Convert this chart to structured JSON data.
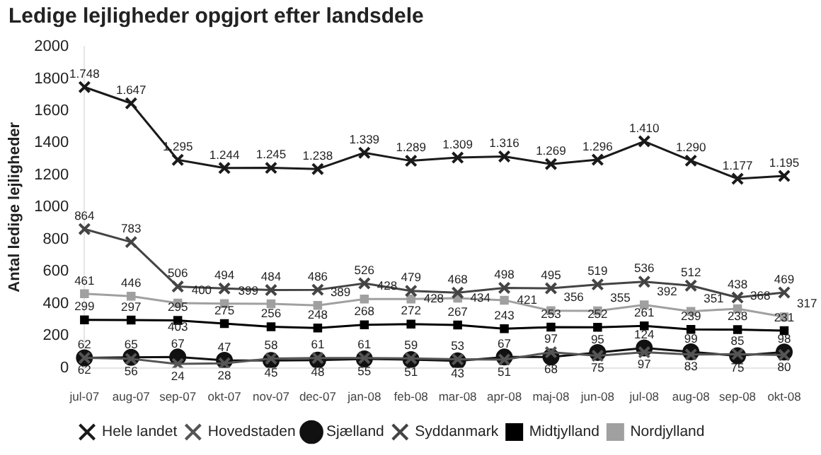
{
  "chart_data": {
    "type": "line",
    "title": "Ledige lejligheder opgjort efter landsdele",
    "ylabel": "Antal ledige lejligheder",
    "categories": [
      "jul-07",
      "aug-07",
      "sep-07",
      "okt-07",
      "nov-07",
      "dec-07",
      "jan-08",
      "feb-08",
      "mar-08",
      "apr-08",
      "maj-08",
      "jun-08",
      "jul-08",
      "aug-08",
      "sep-08",
      "okt-08"
    ],
    "ylim": [
      0,
      2000
    ],
    "yticks": [
      0,
      200,
      400,
      600,
      800,
      1000,
      1200,
      1400,
      1600,
      1800,
      2000
    ],
    "grid": false,
    "legend": "bottom",
    "series": [
      {
        "name": "Hele landet",
        "color": "#1a1a1a",
        "marker": "cross",
        "values": [
          1748,
          1647,
          1295,
          1244,
          1245,
          1238,
          1339,
          1289,
          1309,
          1316,
          1269,
          1296,
          1410,
          1290,
          1177,
          1195
        ],
        "value_labels": [
          "1.748",
          "1.647",
          "1.295",
          "1.244",
          "1.245",
          "1.238",
          "1.339",
          "1.289",
          "1.309",
          "1.316",
          "1.269",
          "1.296",
          "1.410",
          "1.290",
          "1.177",
          "1.195"
        ]
      },
      {
        "name": "Hovedstaden",
        "color": "#555555",
        "marker": "cross",
        "values": [
          62,
          56,
          24,
          28,
          58,
          61,
          61,
          59,
          53,
          51,
          97,
          75,
          97,
          83,
          85,
          80
        ],
        "value_labels": [
          "62",
          "56",
          "24",
          "28",
          "58",
          "61",
          "61",
          "59",
          "53",
          "51",
          "97",
          "75",
          "97",
          "83",
          "85",
          "80"
        ]
      },
      {
        "name": "Sjælland",
        "color": "#111111",
        "marker": "circle",
        "values": [
          62,
          65,
          67,
          47,
          45,
          48,
          55,
          51,
          43,
          67,
          68,
          95,
          124,
          99,
          75,
          98
        ],
        "value_labels": [
          "62",
          "65",
          "67",
          "47",
          "45",
          "48",
          "55",
          "51",
          "43",
          "67",
          "68",
          "95",
          "124",
          "99",
          "75",
          "98"
        ]
      },
      {
        "name": "Syddanmark",
        "color": "#444444",
        "marker": "cross",
        "values": [
          864,
          783,
          506,
          494,
          484,
          486,
          526,
          479,
          468,
          498,
          495,
          519,
          536,
          512,
          438,
          469
        ],
        "value_labels": [
          "864",
          "783",
          "506",
          "494",
          "484",
          "486",
          "526",
          "479",
          "468",
          "498",
          "495",
          "519",
          "536",
          "512",
          "438",
          "469"
        ]
      },
      {
        "name": "Midtjylland",
        "color": "#000000",
        "marker": "square",
        "values": [
          299,
          297,
          295,
          275,
          256,
          248,
          268,
          272,
          267,
          243,
          253,
          252,
          261,
          239,
          238,
          231
        ],
        "value_labels": [
          "299",
          "297",
          "295",
          "275",
          "256",
          "248",
          "268",
          "272",
          "267",
          "243",
          "253",
          "252",
          "261",
          "239",
          "238",
          "231"
        ]
      },
      {
        "name": "Nordjylland",
        "color": "#a0a0a0",
        "marker": "square",
        "values": [
          461,
          446,
          403,
          400,
          399,
          389,
          428,
          428,
          434,
          421,
          356,
          355,
          392,
          351,
          368,
          317
        ],
        "value_labels": [
          "461",
          "446",
          "403",
          "400",
          "399",
          "389",
          "428",
          "428",
          "434",
          "421",
          "356",
          "355",
          "392",
          "351",
          "368",
          "317"
        ]
      }
    ]
  }
}
